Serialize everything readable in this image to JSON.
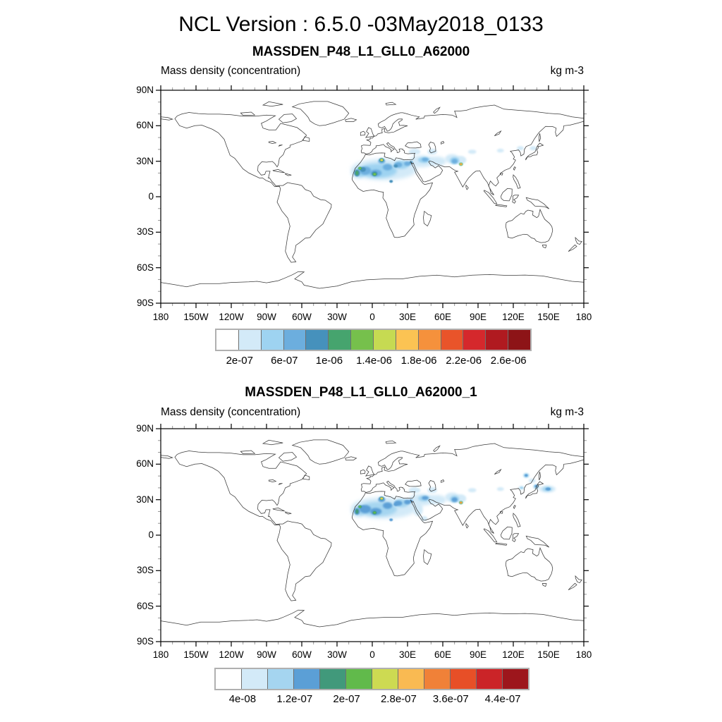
{
  "page": {
    "title": "NCL Version : 6.5.0 -03May2018_0133",
    "background": "#ffffff"
  },
  "chart_data": [
    {
      "type": "filled-contour-map",
      "title": "MASSDEN_P48_L1_GLL0_A62000",
      "left_label": "Mass density (concentration)",
      "right_label": "kg m-3",
      "projection": "cylindrical-equidistant",
      "lon_range": [
        -180,
        180
      ],
      "lat_range": [
        -90,
        90
      ],
      "major_tick_deg": 30,
      "minor_tick_deg": 10,
      "x_tick_labels": [
        "180",
        "150W",
        "120W",
        "90W",
        "60W",
        "30W",
        "0",
        "30E",
        "60E",
        "90E",
        "120E",
        "150E",
        "180"
      ],
      "y_tick_labels": [
        "90N",
        "60N",
        "30N",
        "0",
        "30S",
        "60S",
        "90S"
      ],
      "colorbar": {
        "colors": [
          "#ffffff",
          "#d3eaf8",
          "#9ed3f1",
          "#6caede",
          "#4691bc",
          "#46a46e",
          "#76c04c",
          "#c6da52",
          "#fbc353",
          "#f5913c",
          "#e9542a",
          "#d5282c",
          "#b01a20",
          "#8d1417"
        ],
        "levels": [
          "2e-07",
          "4e-07",
          "6e-07",
          "8e-07",
          "1e-06",
          "1.2e-06",
          "1.4e-06",
          "1.6e-06",
          "1.8e-06",
          "2e-06",
          "2.2e-06",
          "2.4e-06",
          "2.6e-06"
        ],
        "shown_labels": [
          "2e-07",
          "6e-07",
          "1e-06",
          "1.4e-06",
          "1.8e-06",
          "2.2e-06",
          "2.6e-06"
        ],
        "label_boundaries": [
          1,
          3,
          5,
          7,
          9,
          11,
          13
        ]
      },
      "plume_format": [
        "lon",
        "lat",
        "rx_deg",
        "ry_deg",
        "color_index",
        "blur_px"
      ],
      "plumes": [
        [
          10,
          23,
          28,
          9,
          1,
          3
        ],
        [
          -12,
          20,
          6,
          5,
          1,
          2
        ],
        [
          42,
          30,
          11,
          5,
          1,
          2
        ],
        [
          55,
          30,
          8,
          4,
          1,
          2
        ],
        [
          68,
          32,
          6,
          4,
          1,
          1.6
        ],
        [
          36,
          38,
          5,
          2.5,
          1,
          1.4
        ],
        [
          51,
          38,
          4,
          2.5,
          1,
          1.4
        ],
        [
          75,
          31,
          5,
          3.5,
          1,
          1.4
        ],
        [
          85,
          38,
          3.5,
          1.8,
          1,
          1.2
        ],
        [
          109,
          39,
          3,
          1.6,
          1,
          1.2
        ],
        [
          126,
          41,
          3,
          1.8,
          1,
          1.2
        ],
        [
          137,
          41,
          3,
          1.8,
          1,
          1.2
        ],
        [
          5,
          22,
          16,
          6,
          2,
          2.2
        ],
        [
          -10,
          21,
          5,
          4,
          2,
          1.5
        ],
        [
          25,
          27,
          6,
          3.5,
          2,
          1.5
        ],
        [
          44,
          31,
          5,
          2.5,
          2,
          1.3
        ],
        [
          70,
          30.5,
          4,
          3,
          2,
          1.3
        ],
        [
          -6,
          22,
          5,
          3.5,
          3,
          1.2
        ],
        [
          3,
          20,
          5,
          3,
          3,
          1.2
        ],
        [
          13,
          25,
          4,
          2.8,
          3,
          1.2
        ],
        [
          22,
          27,
          3.5,
          2.2,
          3,
          1.1
        ],
        [
          30,
          28,
          3,
          2,
          3,
          1.1
        ],
        [
          8,
          30,
          3,
          2,
          3,
          1.1
        ],
        [
          45,
          31.5,
          2.8,
          1.6,
          3,
          1
        ],
        [
          70,
          30,
          2.5,
          2,
          3,
          1
        ],
        [
          -13,
          20,
          2.5,
          3,
          4,
          0.9
        ],
        [
          -8,
          23,
          2.5,
          2,
          4,
          0.9
        ],
        [
          2,
          19.5,
          2.5,
          2,
          4,
          0.9
        ],
        [
          8,
          31,
          2.2,
          1.6,
          4,
          0.8
        ],
        [
          16,
          13,
          1.5,
          1.2,
          4,
          0.6
        ],
        [
          20,
          26,
          1.8,
          1.4,
          4,
          0.8
        ],
        [
          33,
          29,
          1.5,
          1.2,
          4,
          0.8
        ],
        [
          -13,
          20,
          1.4,
          2,
          5,
          0.5
        ],
        [
          -10.5,
          24,
          1.6,
          1.3,
          5,
          0.5
        ],
        [
          2,
          19,
          1.8,
          1.5,
          5,
          0.5
        ],
        [
          8,
          31,
          1.7,
          1.3,
          5,
          0.5
        ],
        [
          75.5,
          27.5,
          1.7,
          1.4,
          5,
          0.45
        ],
        [
          2,
          19,
          1,
          0.8,
          6,
          0.35
        ],
        [
          -10.5,
          24,
          0.9,
          0.7,
          6,
          0.35
        ],
        [
          8,
          31,
          1.2,
          0.9,
          7,
          0.35
        ],
        [
          8,
          31,
          0.7,
          0.5,
          8,
          0.3
        ],
        [
          75.5,
          27.5,
          1.15,
          0.95,
          7,
          0.3
        ],
        [
          75.5,
          27.5,
          0.85,
          0.7,
          8,
          0.25
        ],
        [
          75.5,
          27.5,
          0.55,
          0.45,
          9,
          0.2
        ],
        [
          75.5,
          27.5,
          0.3,
          0.25,
          11,
          0.15
        ]
      ]
    },
    {
      "type": "filled-contour-map",
      "title": "MASSDEN_P48_L1_GLL0_A62000_1",
      "left_label": "Mass density (concentration)",
      "right_label": "kg m-3",
      "projection": "cylindrical-equidistant",
      "lon_range": [
        -180,
        180
      ],
      "lat_range": [
        -90,
        90
      ],
      "major_tick_deg": 30,
      "minor_tick_deg": 10,
      "x_tick_labels": [
        "180",
        "150W",
        "120W",
        "90W",
        "60W",
        "30W",
        "0",
        "30E",
        "60E",
        "90E",
        "120E",
        "150E",
        "180"
      ],
      "y_tick_labels": [
        "90N",
        "60N",
        "30N",
        "0",
        "30S",
        "60S",
        "90S"
      ],
      "colorbar": {
        "colors": [
          "#ffffff",
          "#d3eaf8",
          "#a5d5f0",
          "#5b9fd6",
          "#41997b",
          "#61ba4b",
          "#cdda52",
          "#f9ba52",
          "#f08138",
          "#e74f27",
          "#cb2428",
          "#9d161c"
        ],
        "levels": [
          "4e-08",
          "8e-08",
          "1.2e-07",
          "1.6e-07",
          "2e-07",
          "2.4e-07",
          "2.8e-07",
          "3.2e-07",
          "3.6e-07",
          "4e-07",
          "4.4e-07"
        ],
        "shown_labels": [
          "4e-08",
          "1.2e-07",
          "2e-07",
          "2.8e-07",
          "3.6e-07",
          "4.4e-07"
        ],
        "label_boundaries": [
          1,
          3,
          5,
          7,
          9,
          11
        ]
      },
      "plume_format": [
        "lon",
        "lat",
        "rx_deg",
        "ry_deg",
        "color_index",
        "blur_px"
      ],
      "plumes": [
        [
          10,
          23,
          28,
          9,
          1,
          3
        ],
        [
          -12,
          20,
          6,
          5,
          1,
          2
        ],
        [
          42,
          30,
          11,
          5,
          1,
          2
        ],
        [
          55,
          30,
          8,
          4,
          1,
          2
        ],
        [
          68,
          32,
          6,
          4,
          1,
          1.6
        ],
        [
          36,
          38,
          5,
          2.5,
          1,
          1.4
        ],
        [
          51,
          38,
          4,
          2.5,
          1,
          1.4
        ],
        [
          75,
          31,
          5,
          3.5,
          1,
          1.4
        ],
        [
          39,
          22,
          4,
          6,
          1,
          1.6
        ],
        [
          44,
          14,
          3,
          2,
          1,
          1.3
        ],
        [
          85,
          38,
          3.5,
          1.8,
          1,
          1.2
        ],
        [
          109,
          39,
          3,
          1.6,
          1,
          1.2
        ],
        [
          5,
          22,
          16,
          6,
          2,
          2.2
        ],
        [
          -10,
          21,
          5,
          4,
          2,
          1.5
        ],
        [
          25,
          27,
          6,
          3.5,
          2,
          1.5
        ],
        [
          44,
          31,
          5,
          2.5,
          2,
          1.3
        ],
        [
          70,
          30.5,
          4,
          3,
          2,
          1.3
        ],
        [
          -6,
          22,
          5,
          3.5,
          3,
          1.2
        ],
        [
          3,
          20,
          5,
          3,
          3,
          1.2
        ],
        [
          13,
          25,
          4,
          2.8,
          3,
          1.2
        ],
        [
          22,
          27,
          3.5,
          2.2,
          3,
          1.1
        ],
        [
          30,
          28,
          3,
          2,
          3,
          1.1
        ],
        [
          8,
          30,
          3,
          2,
          3,
          1.1
        ],
        [
          45,
          31.5,
          2.8,
          1.6,
          3,
          1
        ],
        [
          70,
          30,
          2.5,
          2,
          3,
          1
        ],
        [
          -13,
          20,
          2.5,
          3,
          3,
          0.9
        ],
        [
          -8,
          23,
          2.5,
          2,
          3,
          0.9
        ],
        [
          2,
          19.5,
          2.5,
          2,
          3,
          0.9
        ],
        [
          8,
          31,
          2.2,
          1.6,
          3,
          0.8
        ],
        [
          16,
          13,
          1.5,
          1.2,
          3,
          0.6
        ],
        [
          20,
          26,
          1.8,
          1.4,
          3,
          0.8
        ],
        [
          33,
          29,
          1.5,
          1.2,
          3,
          0.8
        ],
        [
          -13,
          20,
          1.4,
          2,
          4,
          0.5
        ],
        [
          -10.5,
          24,
          1.6,
          1.3,
          4,
          0.5
        ],
        [
          2,
          19,
          1.8,
          1.5,
          4,
          0.5
        ],
        [
          8,
          31,
          1.7,
          1.3,
          4,
          0.5
        ],
        [
          75.5,
          27.5,
          1.7,
          1.4,
          4,
          0.45
        ],
        [
          2,
          19,
          1,
          0.8,
          5,
          0.35
        ],
        [
          -10.5,
          24,
          0.9,
          0.7,
          5,
          0.35
        ],
        [
          8,
          31,
          1.2,
          0.9,
          6,
          0.35
        ],
        [
          8,
          31,
          0.7,
          0.5,
          7,
          0.3
        ],
        [
          75.5,
          27.5,
          1.15,
          0.95,
          6,
          0.3
        ],
        [
          75.5,
          27.5,
          0.85,
          0.7,
          7,
          0.25
        ],
        [
          75.5,
          27.5,
          0.55,
          0.45,
          8,
          0.2
        ],
        [
          75.5,
          27.5,
          0.3,
          0.25,
          10,
          0.15
        ],
        [
          131,
          50.5,
          2.5,
          2,
          2,
          1
        ],
        [
          131,
          50.5,
          1.3,
          1.1,
          3,
          0.6
        ],
        [
          136,
          46,
          3,
          1.8,
          1,
          1.2
        ],
        [
          149,
          39,
          7,
          3,
          1,
          1.6
        ],
        [
          149,
          39,
          4,
          2,
          2,
          1.2
        ],
        [
          149.5,
          39,
          2.2,
          1.3,
          3,
          0.8
        ],
        [
          150,
          39,
          1.2,
          0.8,
          3,
          0.5
        ],
        [
          139.5,
          41,
          2.5,
          2,
          2,
          1
        ],
        [
          139.5,
          41.5,
          1.3,
          1,
          3,
          0.6
        ],
        [
          127,
          40,
          2.5,
          1.8,
          1,
          1
        ],
        [
          127,
          40,
          1.3,
          0.9,
          2,
          0.6
        ]
      ]
    }
  ]
}
